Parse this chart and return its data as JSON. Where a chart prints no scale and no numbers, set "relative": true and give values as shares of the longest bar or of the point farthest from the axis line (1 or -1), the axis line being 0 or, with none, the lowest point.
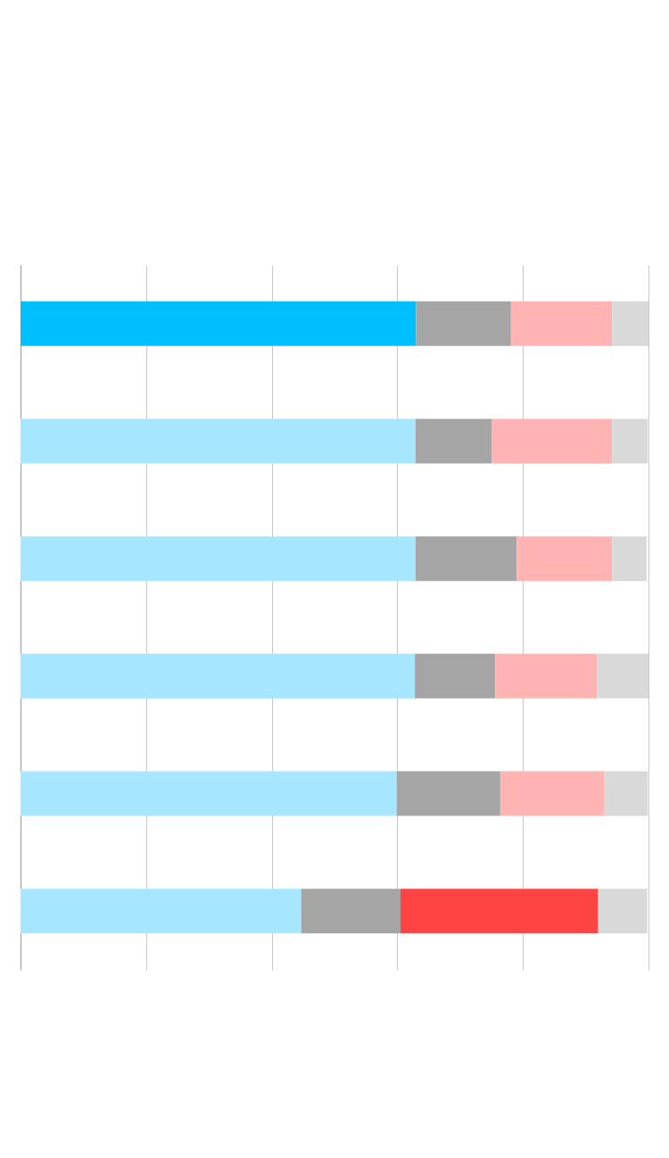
{
  "chart_data": {
    "type": "bar",
    "orientation": "horizontal",
    "stacked": true,
    "relative": true,
    "grid": "x",
    "categories": [
      null,
      null,
      null,
      null,
      null,
      null
    ],
    "series": [
      {
        "color": "#a6e6fe",
        "colors": [
          "#00bfff",
          null,
          null,
          null,
          null,
          null
        ],
        "values": [
          0.63,
          0.629,
          0.629,
          0.628,
          0.599,
          0.447
        ]
      },
      {
        "color": "#a5a5a5",
        "values": [
          0.151,
          0.121,
          0.161,
          0.128,
          0.165,
          0.158
        ]
      },
      {
        "color": "#ffb3b3",
        "colors": [
          null,
          null,
          null,
          null,
          null,
          "#ff4444"
        ],
        "values": [
          0.161,
          0.192,
          0.152,
          0.162,
          0.165,
          0.315
        ]
      },
      {
        "color": "#d9d9d9",
        "values": [
          0.058,
          0.057,
          0.055,
          0.082,
          0.07,
          0.078
        ]
      }
    ]
  }
}
